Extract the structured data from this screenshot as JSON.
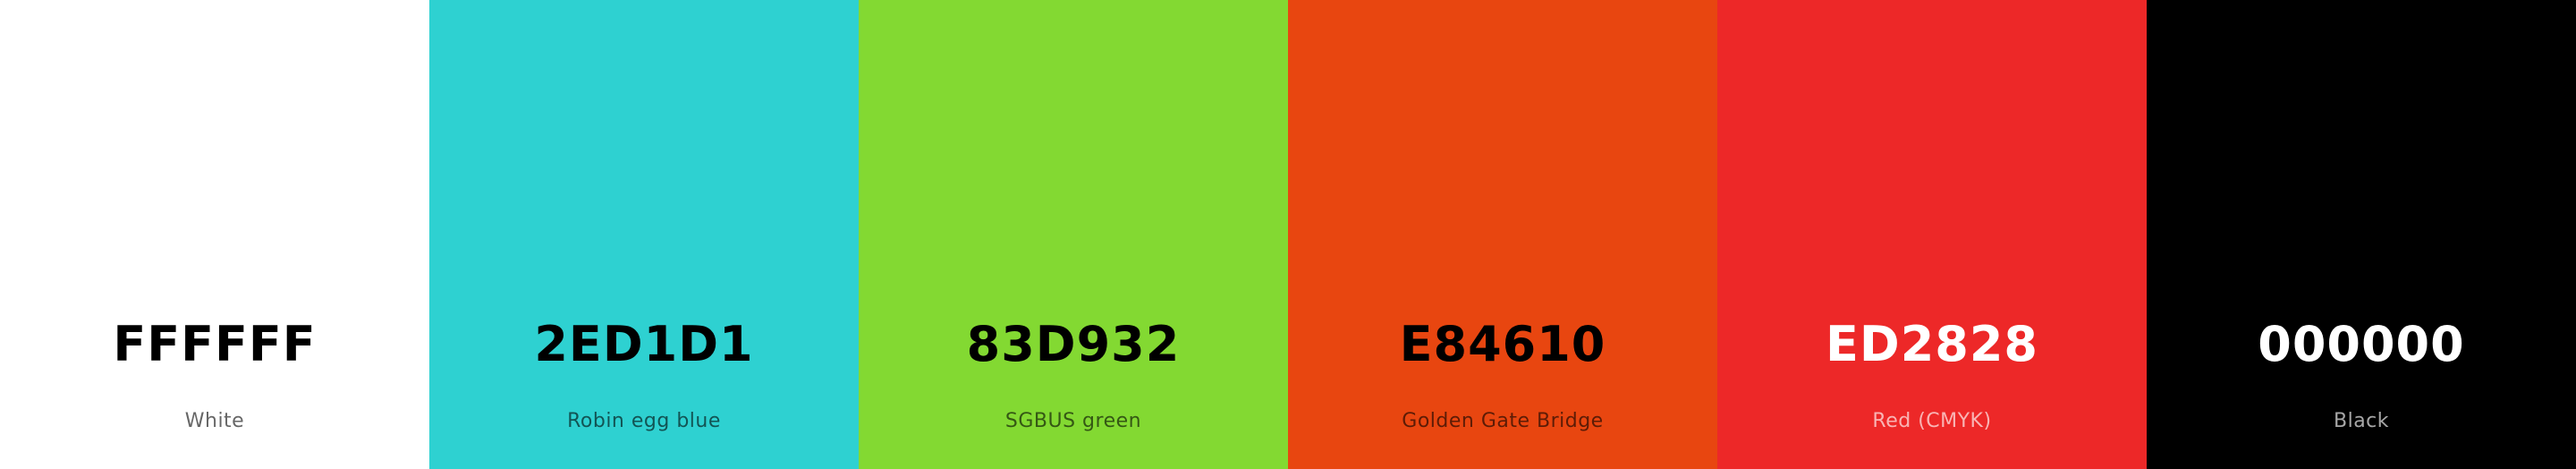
{
  "palette": {
    "swatches": [
      {
        "hex": "FFFFFF",
        "name": "White",
        "color": "#FFFFFF"
      },
      {
        "hex": "2ED1D1",
        "name": "Robin egg blue",
        "color": "#2ED1D1"
      },
      {
        "hex": "83D932",
        "name": "SGBUS green",
        "color": "#83D932"
      },
      {
        "hex": "E84610",
        "name": "Golden Gate Bridge",
        "color": "#E84610"
      },
      {
        "hex": "ED2828",
        "name": "Red (CMYK)",
        "color": "#ED2828"
      },
      {
        "hex": "000000",
        "name": "Black",
        "color": "#000000"
      }
    ]
  }
}
